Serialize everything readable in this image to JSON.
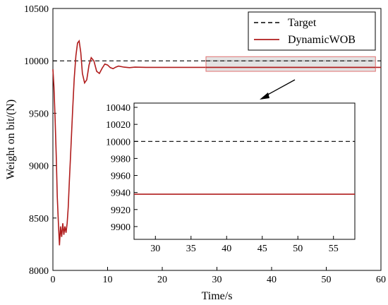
{
  "chart_data": [
    {
      "id": "main",
      "type": "line",
      "xlabel": "Time/s",
      "ylabel": "Weight on bit/(N)",
      "xlim": [
        0,
        60
      ],
      "ylim": [
        8000,
        10500
      ],
      "xticks": [
        0,
        10,
        20,
        30,
        40,
        50,
        60
      ],
      "yticks": [
        8000,
        8500,
        9000,
        9500,
        10000,
        10500
      ],
      "grid": false,
      "legend_position": "top-right",
      "highlight_region": {
        "x": [
          28,
          59
        ],
        "y": [
          9900,
          10040
        ]
      },
      "series": [
        {
          "name": "Target",
          "style": "dashed",
          "color": "#000000",
          "x": [
            0,
            60
          ],
          "y": [
            10000,
            10000
          ]
        },
        {
          "name": "DynamicWOB",
          "style": "solid",
          "color": "#b01c1c",
          "x": [
            0,
            0.2,
            0.4,
            0.6,
            0.8,
            1.0,
            1.2,
            1.4,
            1.6,
            1.8,
            2.0,
            2.2,
            2.4,
            2.6,
            2.8,
            3.0,
            3.3,
            3.6,
            3.9,
            4.2,
            4.5,
            4.8,
            5.1,
            5.4,
            5.8,
            6.2,
            6.6,
            7.0,
            7.5,
            8.0,
            8.5,
            9.0,
            9.5,
            10.0,
            10.5,
            11.0,
            11.5,
            12.0,
            13.0,
            14.0,
            15.0,
            17.0,
            20.0,
            25.0,
            30.0,
            40.0,
            50.0,
            60.0
          ],
          "y": [
            9920,
            9750,
            9450,
            9100,
            8700,
            8450,
            8240,
            8420,
            8320,
            8450,
            8340,
            8420,
            8360,
            8450,
            8600,
            8850,
            9180,
            9520,
            9830,
            10050,
            10170,
            10190,
            10080,
            9880,
            9790,
            9820,
            9960,
            10030,
            10000,
            9900,
            9880,
            9930,
            9970,
            9960,
            9935,
            9925,
            9940,
            9950,
            9940,
            9935,
            9940,
            9938,
            9938,
            9938,
            9938,
            9938,
            9938,
            9938
          ]
        }
      ]
    },
    {
      "id": "inset",
      "type": "line",
      "xlim": [
        27,
        58
      ],
      "ylim": [
        9885,
        10045
      ],
      "xticks": [
        30,
        35,
        40,
        45,
        50,
        55
      ],
      "yticks": [
        9900,
        9920,
        9940,
        9960,
        9980,
        10000,
        10020,
        10040
      ],
      "grid": false,
      "series": [
        {
          "name": "Target",
          "style": "dashed",
          "color": "#000000",
          "x": [
            27,
            58
          ],
          "y": [
            10000,
            10000
          ]
        },
        {
          "name": "DynamicWOB",
          "style": "solid",
          "color": "#b01c1c",
          "x": [
            27,
            58
          ],
          "y": [
            9938,
            9938
          ]
        }
      ]
    }
  ]
}
